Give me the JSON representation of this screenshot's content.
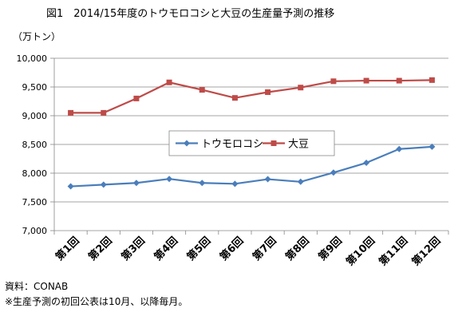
{
  "chart_data": {
    "type": "line",
    "title": "図1　2014/15年度のトウモロコシと大豆の生産量予測の推移",
    "unit_label": "（万トン）",
    "categories": [
      "第1回",
      "第2回",
      "第3回",
      "第4回",
      "第5回",
      "第6回",
      "第7回",
      "第8回",
      "第9回",
      "第10回",
      "第11回",
      "第12回"
    ],
    "ylim": [
      7000,
      10000
    ],
    "yticks": [
      7000,
      7500,
      8000,
      8500,
      9000,
      9500,
      10000
    ],
    "ytick_labels": [
      "7,000",
      "7,500",
      "8,000",
      "8,500",
      "9,000",
      "9,500",
      "10,000"
    ],
    "grid": true,
    "legend_position": "center-right",
    "series": [
      {
        "name": "トウモロコシ",
        "color": "#4A7EBB",
        "marker": "diamond",
        "values": [
          7770,
          7800,
          7830,
          7900,
          7830,
          7815,
          7895,
          7850,
          8010,
          8180,
          8420,
          8460
        ]
      },
      {
        "name": "大豆",
        "color": "#BE4B48",
        "marker": "square",
        "values": [
          9050,
          9050,
          9300,
          9580,
          9450,
          9310,
          9410,
          9490,
          9600,
          9610,
          9610,
          9620
        ]
      }
    ]
  },
  "notes": {
    "source": "資料：CONAB",
    "remark": "※生産予測の初回公表は10月、以降毎月。"
  }
}
